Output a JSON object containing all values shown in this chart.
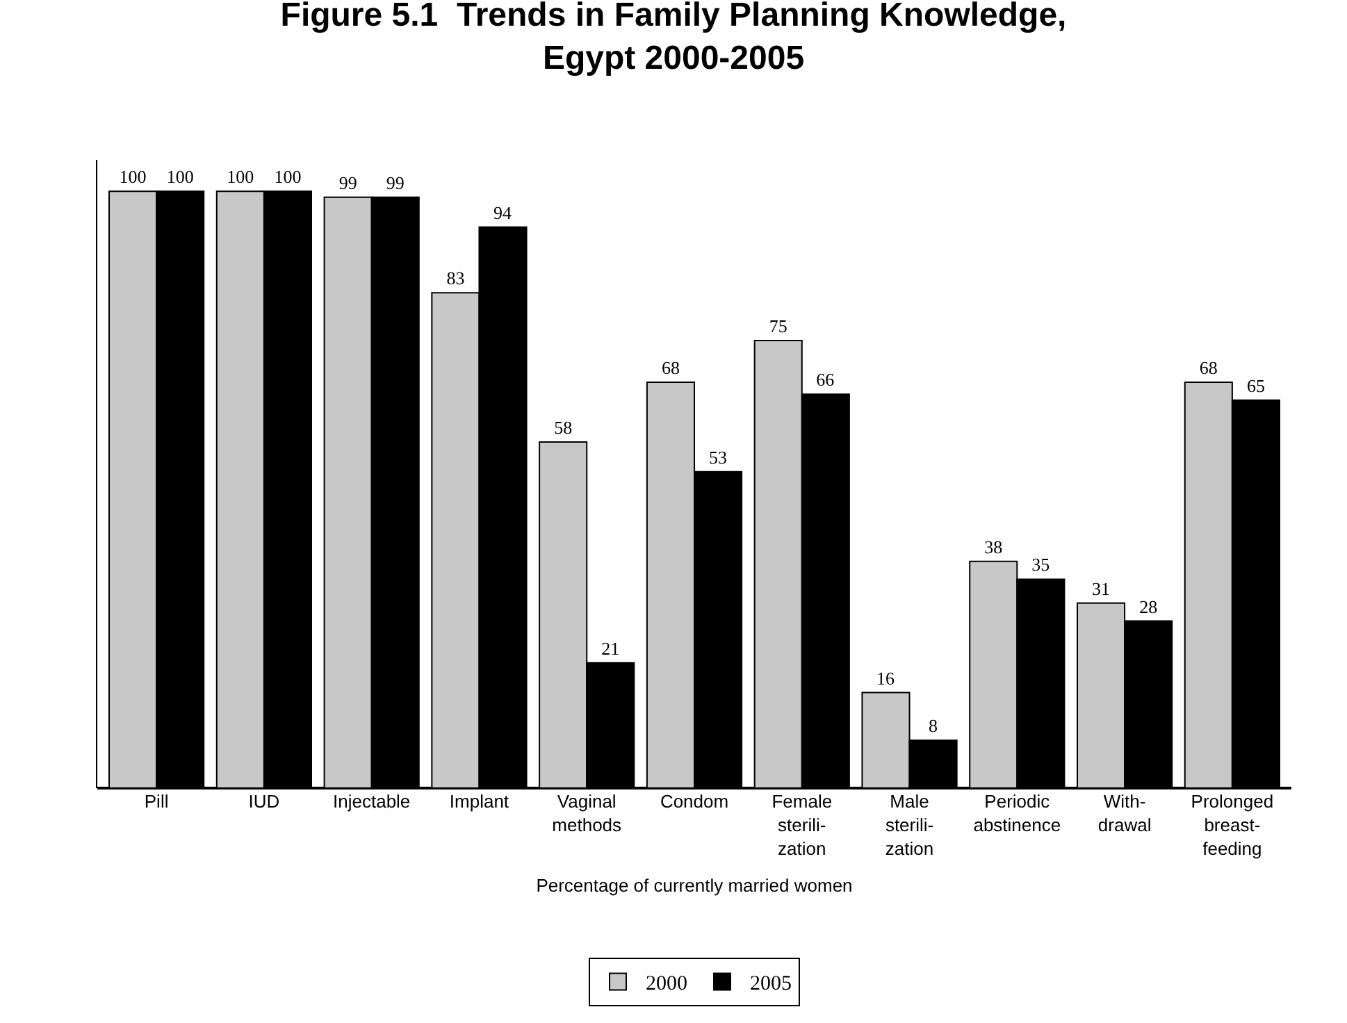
{
  "chart_data": {
    "type": "bar",
    "title": "Figure 5.1  Trends in Family Planning Knowledge,\nEgypt 2000-2005",
    "xlabel": "Percentage of currently married women",
    "categories": [
      "Pill",
      "IUD",
      "Injectable",
      "Implant",
      "Vaginal\nmethods",
      "Condom",
      "Female\nsterili-\nzation",
      "Male\nsterili-\nzation",
      "Periodic\nabstinence",
      "With-\ndrawal",
      "Prolonged\nbreast-\nfeeding"
    ],
    "series": [
      {
        "name": "2000",
        "color": "#c8c8c8",
        "values": [
          100,
          100,
          99,
          83,
          58,
          68,
          75,
          16,
          38,
          31,
          68
        ]
      },
      {
        "name": "2005",
        "color": "#000000",
        "values": [
          100,
          100,
          99,
          94,
          21,
          53,
          66,
          8,
          35,
          28,
          65
        ]
      }
    ],
    "data_labels": true,
    "legend": "bottom"
  }
}
